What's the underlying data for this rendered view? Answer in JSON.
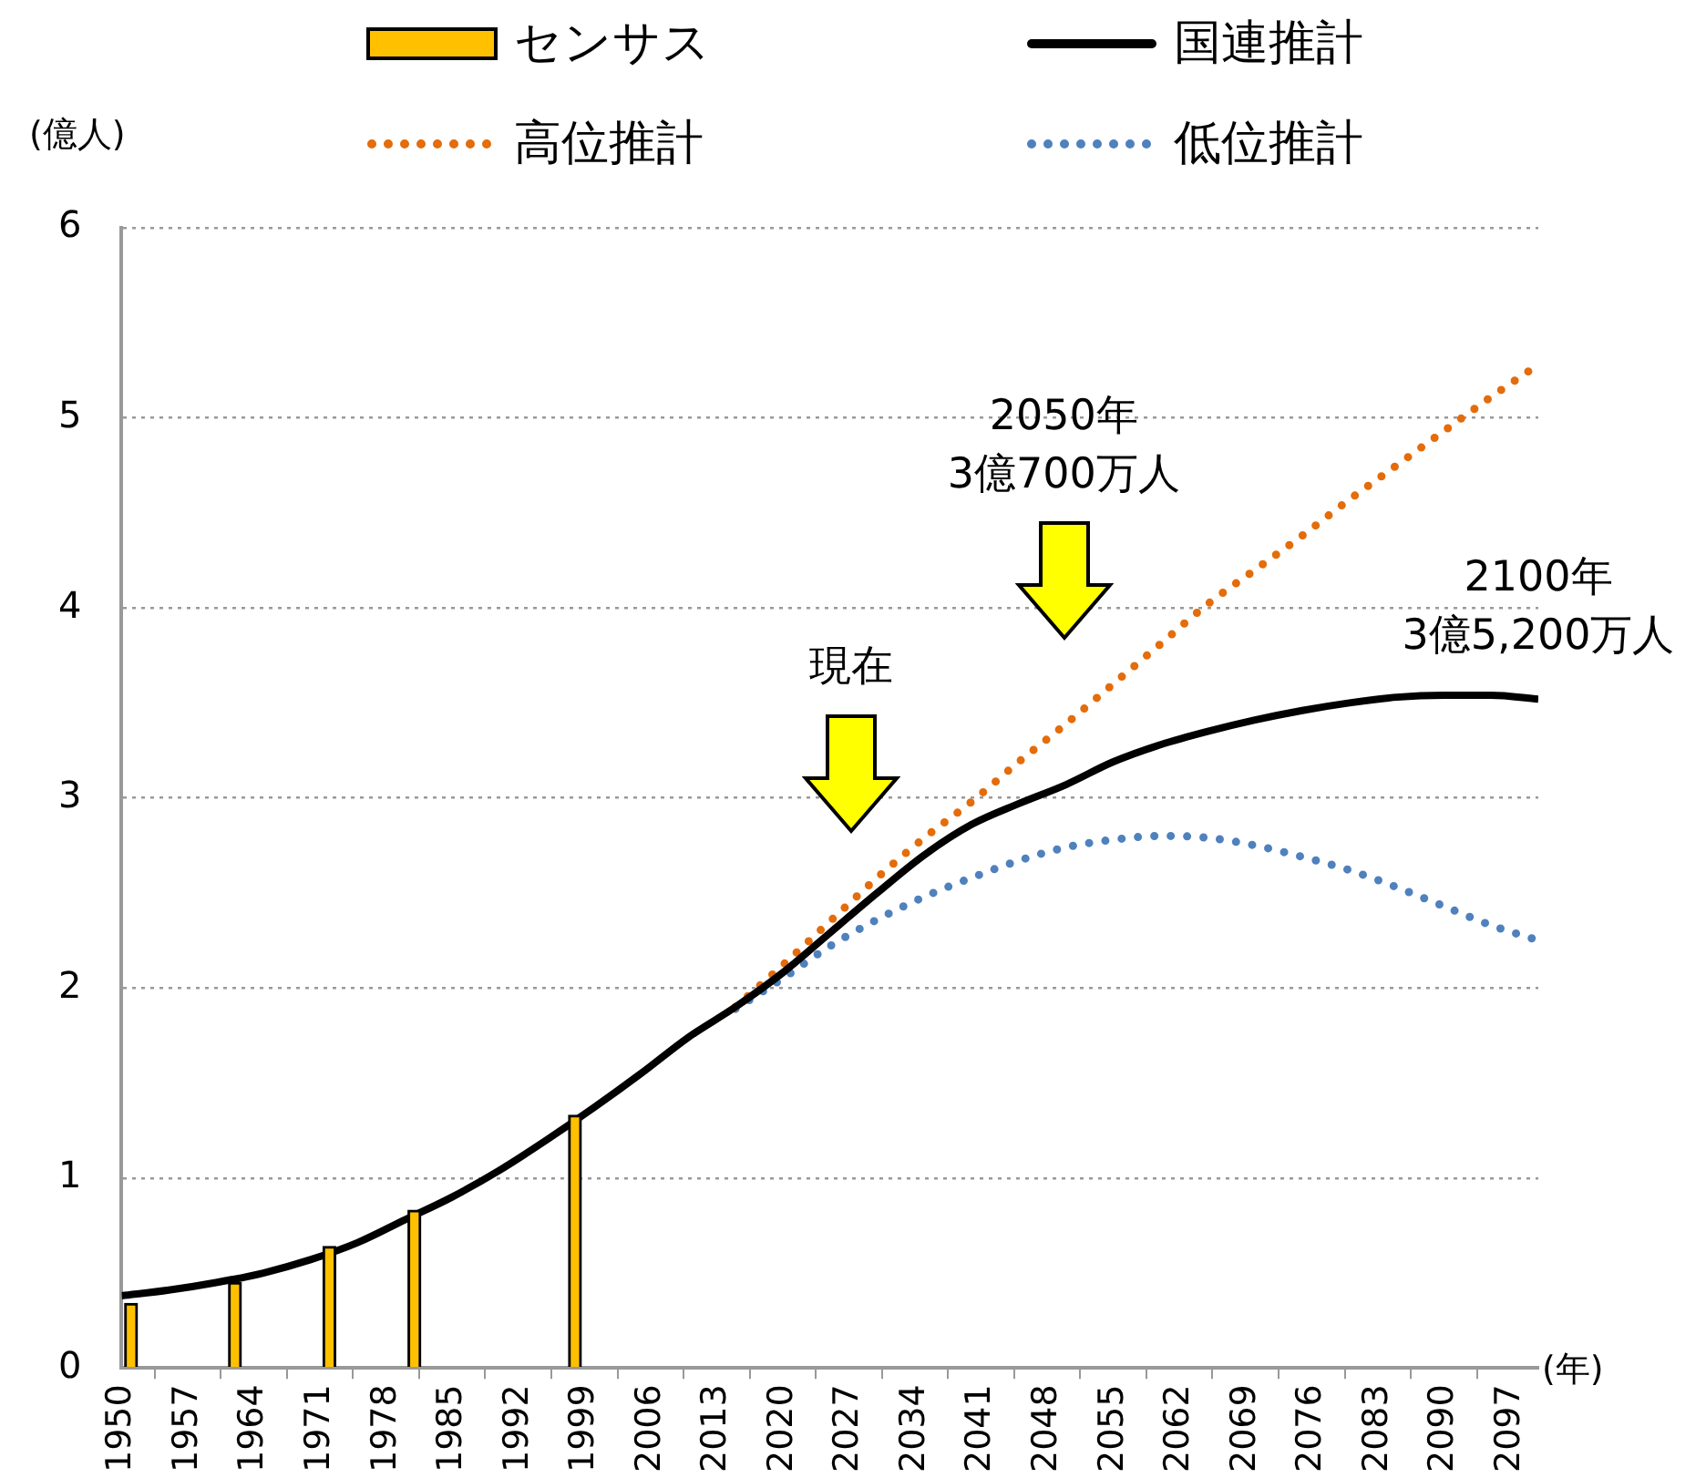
{
  "chart_data": {
    "type": "line",
    "ylabel": "(億人)",
    "xlabel": "(年)",
    "xlim": [
      1950,
      2100
    ],
    "xticks": [
      1950,
      1957,
      1964,
      1971,
      1978,
      1985,
      1992,
      1999,
      2006,
      2013,
      2020,
      2027,
      2034,
      2041,
      2048,
      2055,
      2062,
      2069,
      2076,
      2083,
      2090,
      2097
    ],
    "ylim": [
      0,
      6
    ],
    "yticks": [
      0,
      1,
      2,
      3,
      4,
      5,
      6
    ],
    "grid": "y",
    "legend": "top",
    "marker": "none",
    "series": [
      {
        "name": "センサス",
        "type": "bar",
        "color": "#ffc000",
        "x": [
          1951,
          1962,
          1972,
          1981,
          1998
        ],
        "values": [
          0.34,
          0.45,
          0.64,
          0.83,
          1.33
        ]
      },
      {
        "name": "国連推計",
        "line_style": "solid",
        "color": "#000000",
        "x": [
          1950,
          1955,
          1960,
          1965,
          1970,
          1975,
          1980,
          1985,
          1990,
          1995,
          2000,
          2005,
          2010,
          2015,
          2020,
          2025,
          2030,
          2035,
          2040,
          2045,
          2050,
          2055,
          2060,
          2065,
          2070,
          2075,
          2080,
          2085,
          2090,
          2095,
          2100
        ],
        "values": [
          0.38,
          0.41,
          0.45,
          0.5,
          0.57,
          0.66,
          0.78,
          0.9,
          1.04,
          1.2,
          1.37,
          1.55,
          1.74,
          1.9,
          2.08,
          2.29,
          2.5,
          2.7,
          2.86,
          2.97,
          3.07,
          3.19,
          3.28,
          3.35,
          3.41,
          3.46,
          3.5,
          3.53,
          3.54,
          3.54,
          3.52
        ]
      },
      {
        "name": "高位推計",
        "line_style": "dotted",
        "color": "#e46c0a",
        "x": [
          2015,
          2020,
          2025,
          2030,
          2035,
          2040,
          2045,
          2050,
          2055,
          2060,
          2065,
          2070,
          2075,
          2080,
          2085,
          2090,
          2095,
          2100
        ],
        "values": [
          1.9,
          2.12,
          2.35,
          2.58,
          2.79,
          2.98,
          3.19,
          3.39,
          3.6,
          3.81,
          4.02,
          4.2,
          4.38,
          4.57,
          4.75,
          4.93,
          5.11,
          5.28
        ]
      },
      {
        "name": "低位推計",
        "line_style": "dotted",
        "color": "#4f81bd",
        "x": [
          2015,
          2020,
          2025,
          2030,
          2035,
          2040,
          2045,
          2050,
          2055,
          2060,
          2065,
          2070,
          2075,
          2080,
          2085,
          2090,
          2095,
          2100
        ],
        "values": [
          1.89,
          2.05,
          2.22,
          2.36,
          2.48,
          2.58,
          2.67,
          2.74,
          2.78,
          2.8,
          2.79,
          2.75,
          2.69,
          2.62,
          2.53,
          2.43,
          2.33,
          2.25
        ]
      }
    ],
    "annotations": [
      "現在",
      "2050年\n3億700万人",
      {
        "text": "2100年\n3億5,200万人",
        "x": 2100,
        "y": 3.52
      }
    ]
  }
}
